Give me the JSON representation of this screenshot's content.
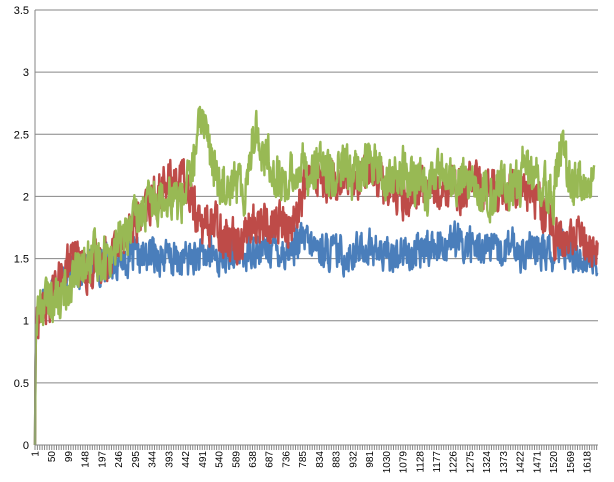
{
  "chart_data": {
    "type": "line",
    "title": "",
    "xlabel": "",
    "ylabel": "",
    "ylim": [
      0,
      3.5
    ],
    "y_ticks": [
      "0",
      "0.5",
      "1",
      "1.5",
      "2",
      "2.5",
      "3",
      "3.5"
    ],
    "x_ticks": [
      "1",
      "50",
      "99",
      "148",
      "197",
      "246",
      "295",
      "344",
      "393",
      "442",
      "491",
      "540",
      "589",
      "638",
      "687",
      "736",
      "785",
      "834",
      "883",
      "932",
      "981",
      "1030",
      "1079",
      "1128",
      "1177",
      "1226",
      "1275",
      "1324",
      "1373",
      "1422",
      "1471",
      "1520",
      "1569",
      "1618"
    ],
    "x_range": [
      1,
      1650
    ],
    "grid": "horizontal",
    "legend": "none",
    "series": [
      {
        "color": "#4a7ebb",
        "x": [
          1,
          3,
          10,
          25,
          50,
          75,
          99,
          125,
          148,
          175,
          197,
          225,
          246,
          270,
          295,
          320,
          344,
          370,
          393,
          420,
          442,
          470,
          491,
          515,
          540,
          565,
          589,
          615,
          638,
          660,
          687,
          710,
          736,
          760,
          785,
          810,
          834,
          860,
          883,
          910,
          932,
          960,
          981,
          1005,
          1030,
          1055,
          1079,
          1105,
          1128,
          1150,
          1177,
          1200,
          1226,
          1250,
          1275,
          1300,
          1324,
          1350,
          1373,
          1400,
          1422,
          1445,
          1471,
          1495,
          1520,
          1545,
          1569,
          1595,
          1618,
          1640,
          1650
        ],
        "values": [
          0.0,
          0.9,
          1.05,
          1.2,
          1.25,
          1.3,
          1.38,
          1.4,
          1.42,
          1.45,
          1.45,
          1.48,
          1.5,
          1.5,
          1.52,
          1.5,
          1.55,
          1.52,
          1.5,
          1.48,
          1.5,
          1.52,
          1.5,
          1.55,
          1.5,
          1.52,
          1.55,
          1.52,
          1.6,
          1.55,
          1.6,
          1.58,
          1.55,
          1.6,
          1.65,
          1.6,
          1.58,
          1.55,
          1.55,
          1.52,
          1.55,
          1.58,
          1.6,
          1.55,
          1.52,
          1.55,
          1.55,
          1.52,
          1.55,
          1.6,
          1.6,
          1.62,
          1.65,
          1.6,
          1.62,
          1.58,
          1.6,
          1.55,
          1.55,
          1.6,
          1.55,
          1.58,
          1.55,
          1.55,
          1.52,
          1.6,
          1.55,
          1.52,
          1.5,
          1.5,
          1.45
        ]
      },
      {
        "color": "#be4b48",
        "x": [
          1,
          3,
          10,
          25,
          50,
          75,
          99,
          125,
          148,
          175,
          197,
          225,
          246,
          270,
          295,
          320,
          344,
          370,
          393,
          420,
          442,
          470,
          491,
          515,
          540,
          565,
          589,
          615,
          638,
          660,
          687,
          710,
          736,
          760,
          785,
          810,
          834,
          860,
          883,
          910,
          932,
          960,
          981,
          1005,
          1030,
          1055,
          1079,
          1105,
          1128,
          1150,
          1177,
          1200,
          1226,
          1250,
          1275,
          1300,
          1324,
          1350,
          1373,
          1400,
          1422,
          1445,
          1471,
          1495,
          1520,
          1545,
          1569,
          1595,
          1618,
          1640,
          1650
        ],
        "values": [
          0.0,
          0.9,
          1.05,
          1.1,
          1.2,
          1.3,
          1.45,
          1.5,
          1.4,
          1.45,
          1.5,
          1.55,
          1.6,
          1.75,
          1.8,
          1.85,
          1.95,
          2.05,
          2.1,
          2.15,
          2.1,
          1.9,
          1.75,
          1.8,
          1.75,
          1.7,
          1.65,
          1.7,
          1.75,
          1.8,
          1.75,
          1.8,
          1.75,
          1.8,
          2.05,
          2.15,
          2.2,
          2.15,
          2.1,
          2.15,
          2.05,
          2.15,
          2.25,
          2.15,
          2.1,
          2.05,
          2.0,
          2.05,
          2.1,
          2.05,
          2.05,
          2.1,
          2.1,
          2.05,
          2.15,
          2.1,
          2.05,
          2.1,
          2.05,
          2.1,
          2.15,
          2.05,
          2.0,
          1.9,
          1.7,
          1.6,
          1.65,
          1.7,
          1.6,
          1.55,
          1.6
        ]
      },
      {
        "color": "#98b954",
        "x": [
          1,
          3,
          10,
          25,
          50,
          75,
          99,
          125,
          148,
          175,
          197,
          225,
          246,
          270,
          295,
          320,
          344,
          370,
          393,
          420,
          442,
          470,
          491,
          505,
          515,
          540,
          565,
          589,
          615,
          638,
          650,
          660,
          687,
          710,
          736,
          760,
          785,
          810,
          834,
          860,
          883,
          910,
          932,
          960,
          981,
          1005,
          1030,
          1055,
          1079,
          1105,
          1128,
          1150,
          1177,
          1200,
          1226,
          1250,
          1275,
          1300,
          1324,
          1350,
          1373,
          1400,
          1422,
          1430,
          1445,
          1471,
          1495,
          1520,
          1535,
          1545,
          1569,
          1595,
          1618,
          1640
        ],
        "values": [
          0.0,
          0.95,
          1.1,
          1.15,
          1.2,
          1.15,
          1.3,
          1.35,
          1.45,
          1.5,
          1.5,
          1.55,
          1.65,
          1.7,
          1.8,
          1.9,
          1.95,
          2.0,
          2.05,
          1.95,
          2.05,
          2.3,
          2.7,
          2.55,
          2.3,
          2.1,
          2.15,
          2.1,
          2.05,
          2.45,
          2.6,
          2.35,
          2.3,
          2.15,
          2.1,
          2.2,
          2.25,
          2.2,
          2.25,
          2.15,
          2.2,
          2.25,
          2.15,
          2.2,
          2.3,
          2.2,
          2.1,
          2.15,
          2.2,
          2.1,
          2.15,
          2.05,
          2.2,
          2.15,
          2.1,
          2.15,
          2.05,
          2.1,
          2.0,
          2.05,
          2.1,
          2.05,
          2.1,
          2.35,
          2.2,
          2.15,
          2.1,
          2.0,
          2.3,
          2.4,
          2.05,
          2.1,
          2.15,
          2.1
        ]
      }
    ]
  }
}
